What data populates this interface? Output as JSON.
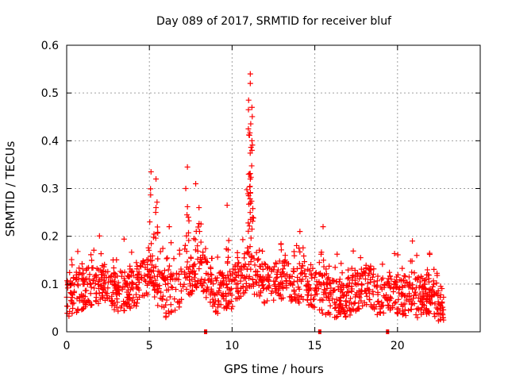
{
  "chart_data": {
    "type": "scatter",
    "title": "Day 089 of 2017, SRMTID for receiver bluf",
    "xlabel": "GPS time / hours",
    "ylabel": "SRMTID / TECUs",
    "xlim": [
      0,
      25
    ],
    "ylim": [
      0,
      0.6
    ],
    "x_ticks": [
      0,
      5,
      10,
      15,
      20
    ],
    "y_ticks": [
      0,
      0.1,
      0.2,
      0.3,
      0.4,
      0.5,
      0.6
    ],
    "x_tick_labels": [
      "0",
      "5",
      "10",
      "15",
      "20"
    ],
    "y_tick_labels": [
      "0",
      "0.1",
      "0.2",
      "0.3",
      "0.4",
      "0.5",
      "0.6"
    ],
    "grid": true,
    "marker": "+",
    "color": "#ff0000",
    "x_range_data": [
      0.0,
      22.8
    ],
    "series": [
      {
        "name": "SRMTID",
        "envelope": [
          {
            "x": 0.0,
            "y": 0.07
          },
          {
            "x": 1.0,
            "y": 0.09
          },
          {
            "x": 2.0,
            "y": 0.1
          },
          {
            "x": 3.0,
            "y": 0.08
          },
          {
            "x": 4.0,
            "y": 0.09
          },
          {
            "x": 5.0,
            "y": 0.12
          },
          {
            "x": 6.0,
            "y": 0.07
          },
          {
            "x": 7.0,
            "y": 0.1
          },
          {
            "x": 8.0,
            "y": 0.14
          },
          {
            "x": 9.0,
            "y": 0.08
          },
          {
            "x": 10.0,
            "y": 0.09
          },
          {
            "x": 11.0,
            "y": 0.13
          },
          {
            "x": 12.0,
            "y": 0.1
          },
          {
            "x": 13.0,
            "y": 0.11
          },
          {
            "x": 14.0,
            "y": 0.1
          },
          {
            "x": 15.0,
            "y": 0.09
          },
          {
            "x": 16.0,
            "y": 0.07
          },
          {
            "x": 17.0,
            "y": 0.07
          },
          {
            "x": 18.0,
            "y": 0.1
          },
          {
            "x": 19.0,
            "y": 0.07
          },
          {
            "x": 20.0,
            "y": 0.08
          },
          {
            "x": 21.0,
            "y": 0.07
          },
          {
            "x": 22.0,
            "y": 0.08
          },
          {
            "x": 22.8,
            "y": 0.05
          }
        ],
        "peaks": [
          {
            "x": 5.1,
            "y": 0.335
          },
          {
            "x": 5.4,
            "y": 0.32
          },
          {
            "x": 5.4,
            "y": 0.26
          },
          {
            "x": 7.3,
            "y": 0.345
          },
          {
            "x": 7.2,
            "y": 0.3
          },
          {
            "x": 7.8,
            "y": 0.31
          },
          {
            "x": 8.0,
            "y": 0.26
          },
          {
            "x": 9.7,
            "y": 0.265
          },
          {
            "x": 11.1,
            "y": 0.54
          },
          {
            "x": 11.1,
            "y": 0.52
          },
          {
            "x": 11.0,
            "y": 0.485
          },
          {
            "x": 11.2,
            "y": 0.47
          },
          {
            "x": 11.2,
            "y": 0.4
          },
          {
            "x": 11.2,
            "y": 0.38
          },
          {
            "x": 11.0,
            "y": 0.33
          },
          {
            "x": 11.1,
            "y": 0.32
          },
          {
            "x": 11.0,
            "y": 0.285
          },
          {
            "x": 15.5,
            "y": 0.22
          },
          {
            "x": 20.9,
            "y": 0.19
          },
          {
            "x": 14.1,
            "y": 0.21
          },
          {
            "x": 6.2,
            "y": 0.22
          }
        ]
      }
    ],
    "gap_markers_x": [
      8.4,
      15.3,
      19.4
    ]
  }
}
